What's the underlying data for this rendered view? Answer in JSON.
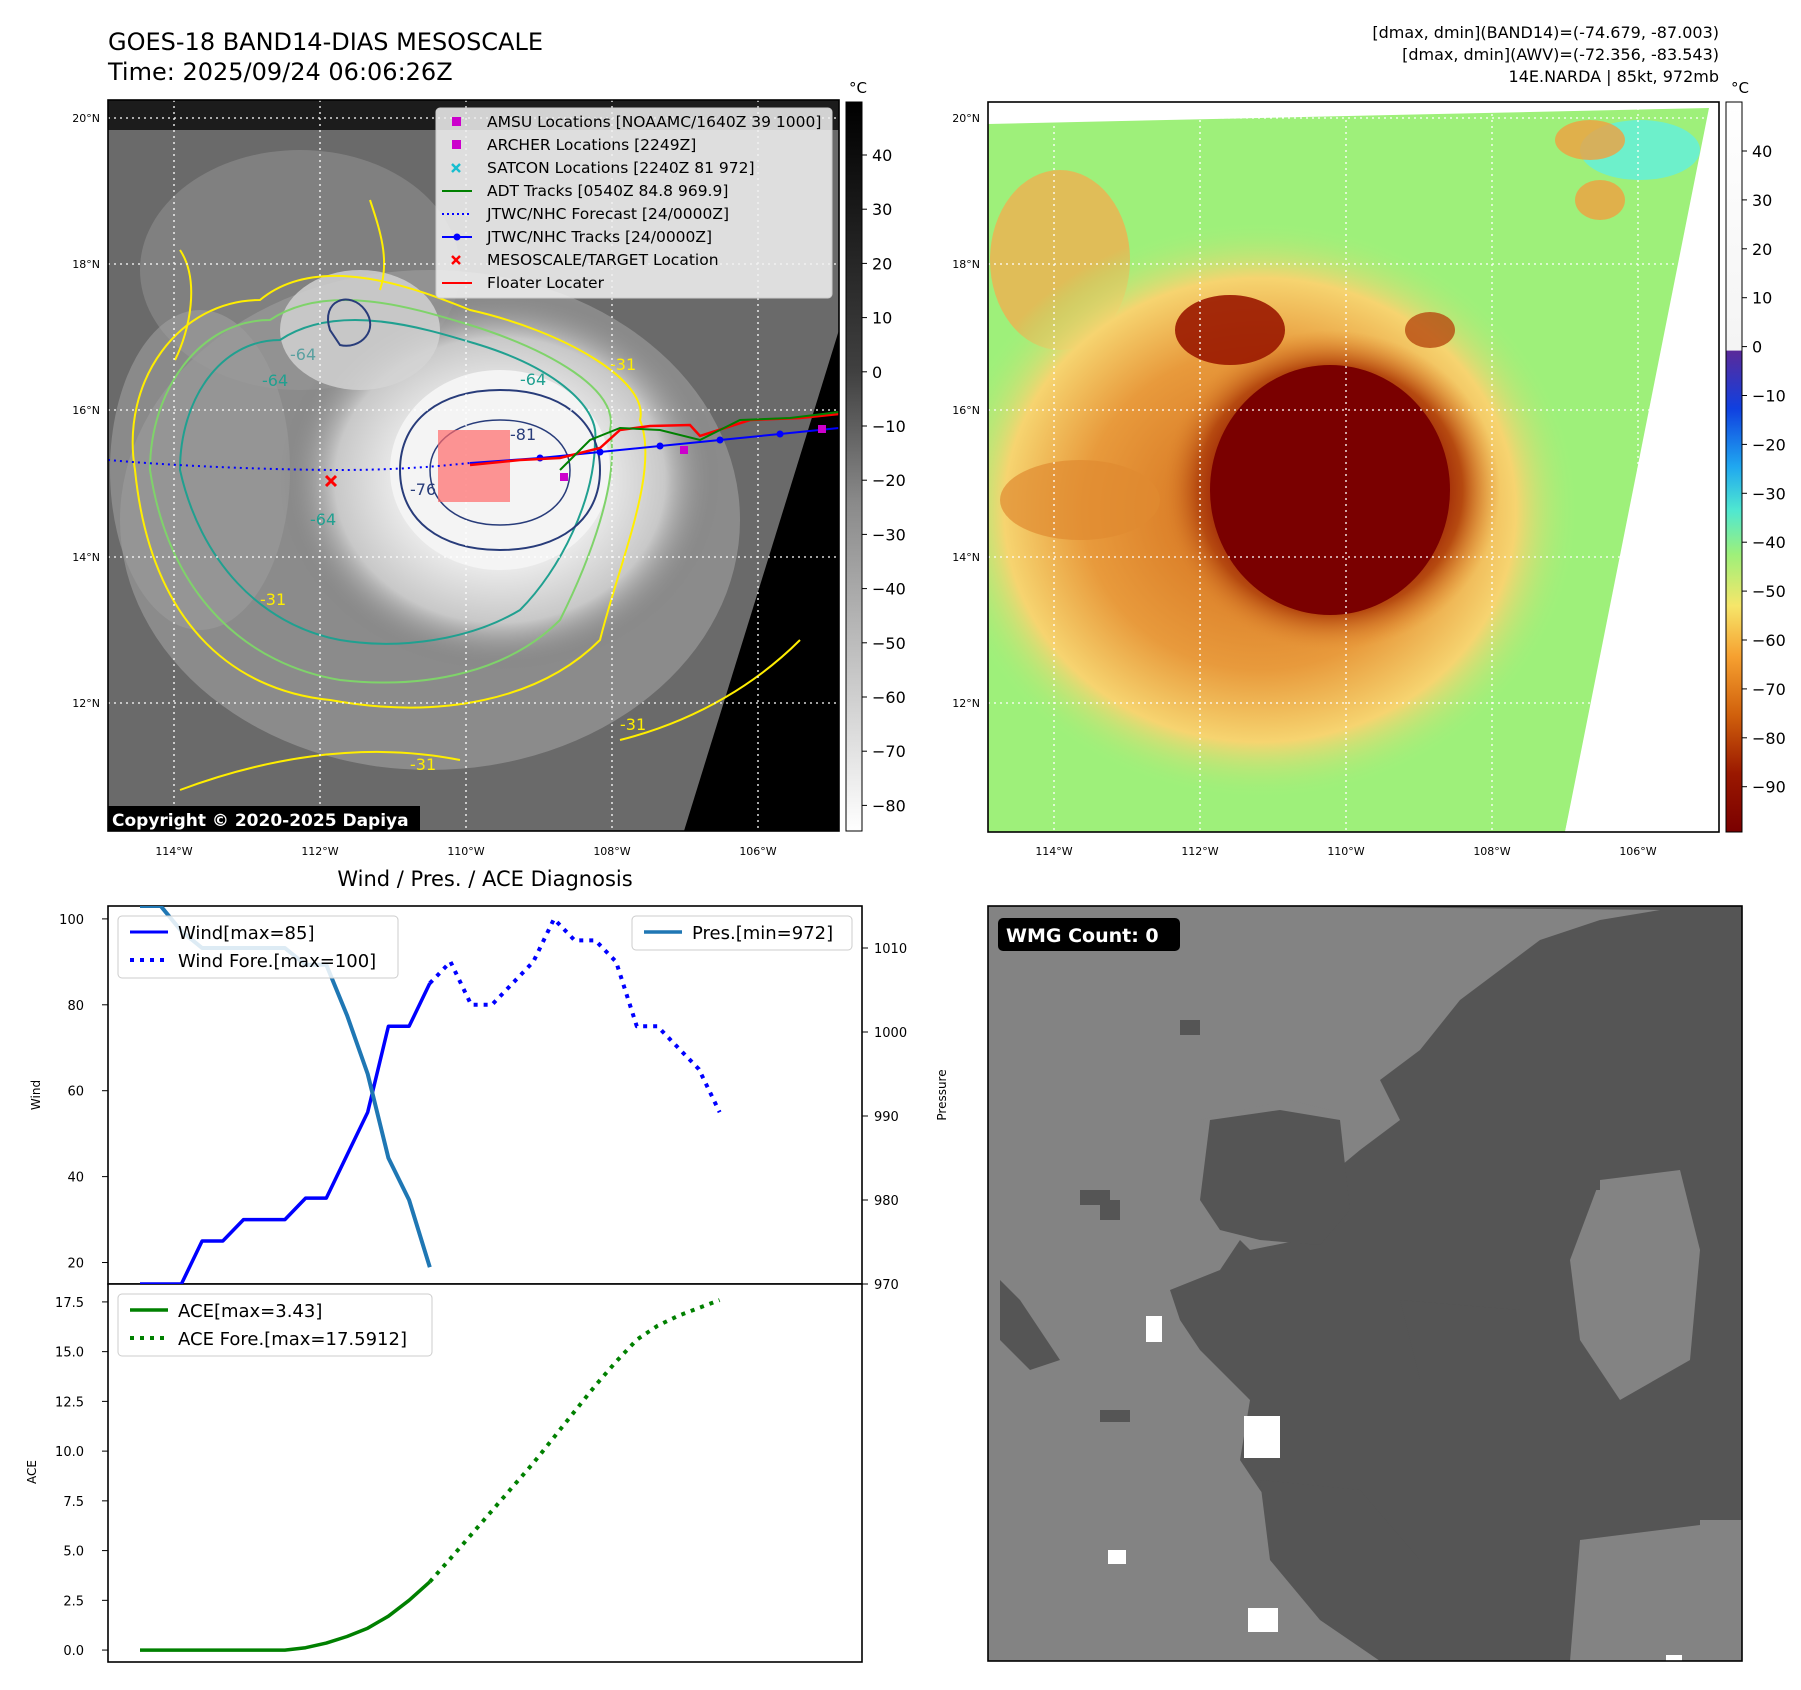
{
  "header": {
    "title_line1": "GOES-18 BAND14-DIAS MESOSCALE",
    "title_line2": "Time: 2025/09/24 06:06:26Z",
    "stats_line1": "[dmax, dmin](BAND14)=(-74.679, -87.003)",
    "stats_line2": "[dmax, dmin](AWV)=(-72.356, -83.543)",
    "stats_line3": "14E.NARDA | 85kt, 972mb"
  },
  "map_panel": {
    "lat_labels": [
      "20°N",
      "18°N",
      "16°N",
      "14°N",
      "12°N"
    ],
    "lon_labels": [
      "114°W",
      "112°W",
      "110°W",
      "108°W",
      "106°W"
    ],
    "contour_labels": [
      "-64",
      "-64",
      "-64",
      "-81",
      "-76",
      "-64",
      "-31",
      "-31",
      "-31",
      "-31"
    ],
    "copyright": "Copyright © 2020-2025 Dapiya",
    "colorbar_unit": "°C",
    "colorbar_ticks": [
      "40",
      "30",
      "20",
      "10",
      "0",
      "−10",
      "−20",
      "−30",
      "−40",
      "−50",
      "−60",
      "−70",
      "−80"
    ],
    "legend": [
      {
        "label": "AMSU Locations [NOAAMC/1640Z 39 1000]",
        "symbol": "square",
        "color": "#cc00cc"
      },
      {
        "label": "ARCHER Locations [2249Z]",
        "symbol": "square",
        "color": "#cc00cc"
      },
      {
        "label": "SATCON Locations [2240Z 81 972]",
        "symbol": "x",
        "color": "#17becf"
      },
      {
        "label": "ADT Tracks [0540Z 84.8 969.9]",
        "symbol": "line",
        "color": "#008000"
      },
      {
        "label": "JTWC/NHC Forecast [24/0000Z]",
        "symbol": "dotted",
        "color": "#0000ff"
      },
      {
        "label": "JTWC/NHC Tracks [24/0000Z]",
        "symbol": "line-dot",
        "color": "#0000ff"
      },
      {
        "label": "MESOSCALE/TARGET Location",
        "symbol": "x",
        "color": "#ff0000"
      },
      {
        "label": "Floater Locater",
        "symbol": "line",
        "color": "#ff0000"
      }
    ]
  },
  "color_panel": {
    "lat_labels": [
      "20°N",
      "18°N",
      "16°N",
      "14°N",
      "12°N"
    ],
    "lon_labels": [
      "114°W",
      "112°W",
      "110°W",
      "108°W",
      "106°W"
    ],
    "colorbar_unit": "°C",
    "colorbar_ticks": [
      "40",
      "30",
      "20",
      "10",
      "0",
      "−10",
      "−20",
      "−30",
      "−40",
      "−50",
      "−60",
      "−70",
      "−80",
      "−90"
    ]
  },
  "wmg_panel": {
    "label": "WMG Count: 0"
  },
  "colors": {
    "wind": "#0000ff",
    "pressure": "#1f77b4",
    "ace": "#008000",
    "floater": "#ff0000",
    "contour_yellow": "#ffee00",
    "contour_teal": "#20a090",
    "contour_navy": "#283c7a"
  },
  "chart_data": [
    {
      "type": "line",
      "title": "Wind / Pres. / ACE Diagnosis",
      "xlabel": "",
      "ylabel": "Wind",
      "ylabel_right": "Pressure",
      "ylim": [
        15,
        103
      ],
      "ylim_right": [
        970,
        1015
      ],
      "yticks": [
        20,
        40,
        60,
        80,
        100
      ],
      "yticks_right": [
        970,
        980,
        990,
        1000,
        1010
      ],
      "x_steps": 22,
      "legend_left": [
        "Wind[max=85]",
        "Wind Fore.[max=100]"
      ],
      "legend_right": [
        "Pres.[min=972]"
      ],
      "series": [
        {
          "name": "Wind[max=85]",
          "style": "solid",
          "color": "#0000ff",
          "x": [
            0,
            1,
            2,
            3,
            4,
            5,
            6,
            7,
            8,
            9,
            10,
            11,
            12,
            13,
            14
          ],
          "values": [
            15,
            15,
            15,
            25,
            25,
            30,
            30,
            30,
            35,
            35,
            45,
            55,
            75,
            75,
            85
          ]
        },
        {
          "name": "Wind Fore.[max=100]",
          "style": "dotted",
          "color": "#0000ff",
          "x": [
            14,
            15,
            16,
            17,
            18,
            19,
            20,
            21,
            22,
            23,
            24,
            25,
            26,
            27,
            28
          ],
          "values": [
            85,
            90,
            80,
            80,
            85,
            90,
            100,
            95,
            95,
            90,
            75,
            75,
            70,
            65,
            55
          ]
        },
        {
          "name": "Pres.[min=972]",
          "style": "solid",
          "color": "#1f77b4",
          "axis": "right",
          "x": [
            0,
            1,
            2,
            3,
            4,
            5,
            6,
            7,
            8,
            9,
            10,
            11,
            12,
            13,
            14
          ],
          "values": [
            1015,
            1015,
            1012,
            1010,
            1010,
            1010,
            1010,
            1010,
            1008,
            1008,
            1002,
            995,
            985,
            980,
            972
          ]
        }
      ]
    },
    {
      "type": "line",
      "xlabel": "",
      "ylabel": "ACE",
      "ylim": [
        -0.6,
        18.4
      ],
      "yticks": [
        0.0,
        2.5,
        5.0,
        7.5,
        10.0,
        12.5,
        15.0,
        17.5
      ],
      "legend": [
        "ACE[max=3.43]",
        "ACE Fore.[max=17.5912]"
      ],
      "series": [
        {
          "name": "ACE[max=3.43]",
          "style": "solid",
          "color": "#008000",
          "x": [
            0,
            1,
            2,
            3,
            4,
            5,
            6,
            7,
            8,
            9,
            10,
            11,
            12,
            13,
            14
          ],
          "values": [
            0,
            0,
            0,
            0,
            0,
            0,
            0,
            0,
            0.12,
            0.35,
            0.68,
            1.1,
            1.7,
            2.5,
            3.43
          ]
        },
        {
          "name": "ACE Fore.[max=17.5912]",
          "style": "dotted",
          "color": "#008000",
          "x": [
            14,
            15,
            16,
            17,
            18,
            19,
            20,
            21,
            22,
            23,
            24,
            25,
            26,
            27,
            28
          ],
          "values": [
            3.43,
            4.6,
            5.8,
            7.0,
            8.2,
            9.4,
            10.7,
            12.0,
            13.3,
            14.5,
            15.6,
            16.3,
            16.8,
            17.2,
            17.5912
          ]
        }
      ]
    }
  ]
}
